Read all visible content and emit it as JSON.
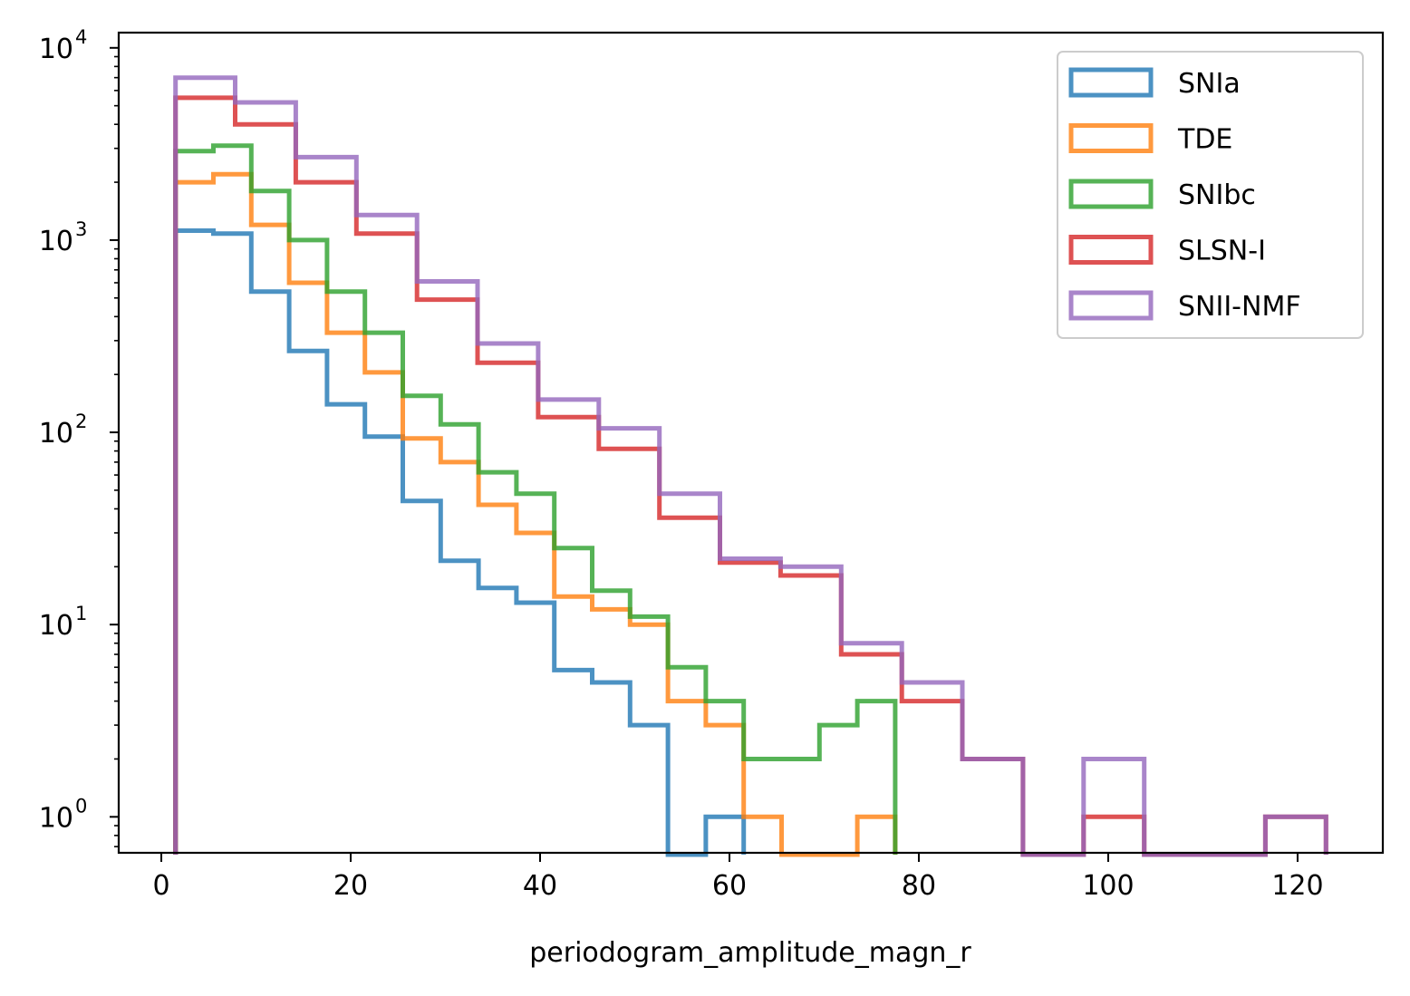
{
  "chart_data": {
    "type": "histogram",
    "title": "",
    "xlabel": "periodogram_amplitude_magn_r",
    "ylabel": "",
    "y_scale": "log",
    "ylim": [
      0.65,
      12000
    ],
    "xlim": [
      -4.5,
      129
    ],
    "x_ticks": [
      0,
      20,
      40,
      60,
      80,
      100,
      120
    ],
    "y_ticks": [
      {
        "value": 1,
        "base": "10",
        "exp": "0"
      },
      {
        "value": 10,
        "base": "10",
        "exp": "1"
      },
      {
        "value": 100,
        "base": "10",
        "exp": "2"
      },
      {
        "value": 1000,
        "base": "10",
        "exp": "3"
      },
      {
        "value": 10000,
        "base": "10",
        "exp": "4"
      }
    ],
    "grid": false,
    "legend_position": "top-right",
    "series": [
      {
        "name": "SNIa",
        "color": "#1f77b4",
        "edges": [
          1.5,
          5.5,
          9.5,
          13.5,
          17.5,
          21.5,
          25.5,
          29.5,
          33.5,
          37.5,
          41.5,
          45.5,
          49.5,
          53.5,
          57.5,
          61.5
        ],
        "counts": [
          1120,
          1080,
          540,
          265,
          140,
          95,
          44,
          21.5,
          15.5,
          13,
          5.8,
          5,
          3,
          0,
          1
        ]
      },
      {
        "name": "TDE",
        "color": "#ff7f0e",
        "edges": [
          1.5,
          5.5,
          9.5,
          13.5,
          17.5,
          21.5,
          25.5,
          29.5,
          33.5,
          37.5,
          41.5,
          45.5,
          49.5,
          53.5,
          57.5,
          61.5,
          65.5,
          69.5,
          73.5,
          77.5
        ],
        "counts": [
          2000,
          2200,
          1200,
          600,
          330,
          205,
          93,
          70,
          42,
          30,
          14,
          12,
          10,
          4,
          3,
          1,
          0,
          0,
          1
        ]
      },
      {
        "name": "SNIbc",
        "color": "#2ca02c",
        "edges": [
          1.5,
          5.5,
          9.5,
          13.5,
          17.5,
          21.5,
          25.5,
          29.5,
          33.5,
          37.5,
          41.5,
          45.5,
          49.5,
          53.5,
          57.5,
          61.5,
          65.5,
          69.5,
          73.5,
          77.5
        ],
        "counts": [
          2900,
          3100,
          1800,
          1000,
          540,
          330,
          155,
          110,
          62,
          48,
          25,
          15,
          11,
          6,
          4,
          2,
          2,
          3,
          4
        ]
      },
      {
        "name": "SLSN-I",
        "color": "#d62728",
        "edges": [
          1.5,
          7.8,
          14.2,
          20.6,
          27.0,
          33.4,
          39.8,
          46.2,
          52.6,
          59.0,
          65.4,
          71.8,
          78.2,
          84.6,
          91.0,
          97.4,
          103.8,
          110.2,
          116.6,
          123.0
        ],
        "counts": [
          5500,
          4000,
          2000,
          1080,
          490,
          230,
          120,
          82,
          36,
          21,
          18,
          7,
          4,
          2,
          0,
          1,
          0,
          0,
          1
        ]
      },
      {
        "name": "SNII-NMF",
        "color": "#9467bd",
        "edges": [
          1.5,
          7.8,
          14.2,
          20.6,
          27.0,
          33.4,
          39.8,
          46.2,
          52.6,
          59.0,
          65.4,
          71.8,
          78.2,
          84.6,
          91.0,
          97.4,
          103.8,
          110.2,
          116.6,
          123.0
        ],
        "counts": [
          7000,
          5200,
          2700,
          1350,
          610,
          290,
          148,
          105,
          48,
          22,
          20,
          8,
          5,
          2,
          0,
          2,
          0,
          0,
          1
        ]
      }
    ]
  }
}
